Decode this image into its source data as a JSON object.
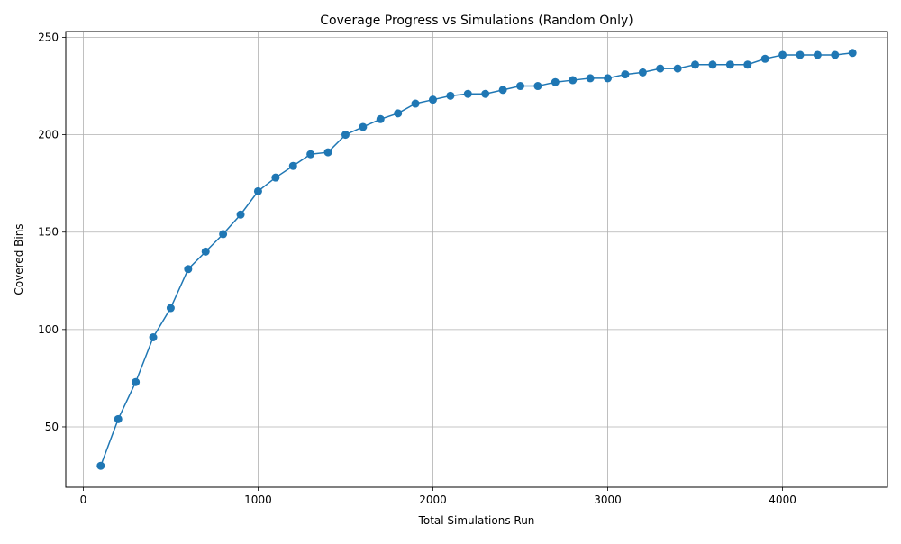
{
  "chart_data": {
    "type": "line",
    "title": "Coverage Progress vs Simulations (Random Only)",
    "xlabel": "Total Simulations Run",
    "ylabel": "Covered Bins",
    "xlim": [
      -100,
      4600
    ],
    "ylim": [
      19,
      253
    ],
    "xticks": [
      0,
      1000,
      2000,
      3000,
      4000
    ],
    "yticks": [
      50,
      100,
      150,
      200,
      250
    ],
    "grid": true,
    "marker": "circle",
    "color": "#1f77b4",
    "series": [
      {
        "x": [
          100,
          200,
          300,
          400,
          500,
          600,
          700,
          800,
          900,
          1000,
          1100,
          1200,
          1300,
          1400,
          1500,
          1600,
          1700,
          1800,
          1900,
          2000,
          2100,
          2200,
          2300,
          2400,
          2500,
          2600,
          2700,
          2800,
          2900,
          3000,
          3100,
          3200,
          3300,
          3400,
          3500,
          3600,
          3700,
          3800,
          3900,
          4000,
          4100,
          4200,
          4300,
          4400
        ],
        "y": [
          30,
          54,
          73,
          96,
          111,
          131,
          140,
          149,
          159,
          171,
          178,
          184,
          190,
          191,
          200,
          204,
          208,
          211,
          216,
          218,
          220,
          221,
          221,
          223,
          225,
          225,
          227,
          228,
          229,
          229,
          231,
          232,
          234,
          234,
          236,
          236,
          236,
          236,
          239,
          241,
          241,
          241,
          241,
          242
        ]
      }
    ]
  }
}
